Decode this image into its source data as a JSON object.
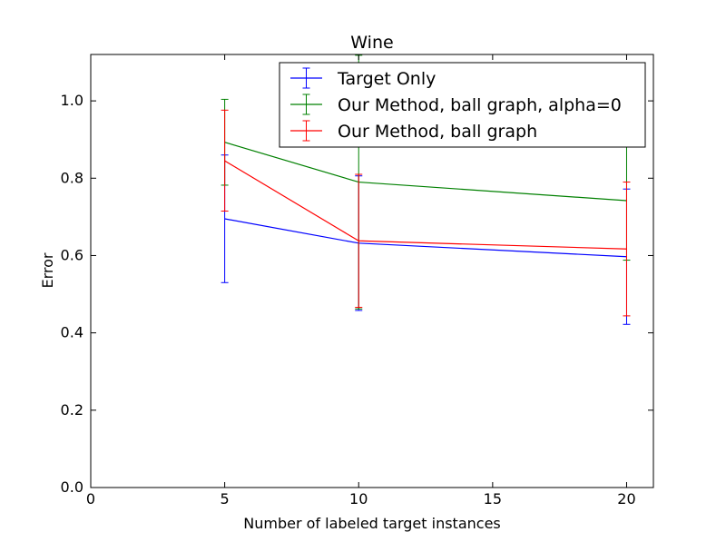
{
  "chart_data": {
    "type": "line",
    "title": "Wine",
    "xlabel": "Number of labeled target instances",
    "ylabel": "Error",
    "xlim": [
      0,
      21
    ],
    "ylim": [
      0.0,
      1.12
    ],
    "xticks": [
      0,
      5,
      10,
      15,
      20
    ],
    "yticks": [
      0.0,
      0.2,
      0.4,
      0.6,
      0.8,
      1.0
    ],
    "xtick_labels": [
      "0",
      "5",
      "10",
      "15",
      "20"
    ],
    "ytick_labels": [
      "0.0",
      "0.2",
      "0.4",
      "0.6",
      "0.8",
      "1.0"
    ],
    "grid": false,
    "legend_position": "top-right",
    "x": [
      5,
      10,
      20
    ],
    "series": [
      {
        "name": "Target Only",
        "color": "#0000ff",
        "values": [
          0.695,
          0.632,
          0.597
        ],
        "err_low": [
          0.53,
          0.458,
          0.422
        ],
        "err_high": [
          0.86,
          0.806,
          0.772
        ]
      },
      {
        "name": "Our Method, ball graph, alpha=0",
        "color": "#008000",
        "values": [
          0.893,
          0.79,
          0.742
        ],
        "err_low": [
          0.782,
          0.462,
          0.588
        ],
        "err_high": [
          1.004,
          1.118,
          0.896
        ]
      },
      {
        "name": "Our Method, ball graph",
        "color": "#ff0000",
        "values": [
          0.845,
          0.638,
          0.617
        ],
        "err_low": [
          0.715,
          0.466,
          0.444
        ],
        "err_high": [
          0.976,
          0.81,
          0.79
        ]
      }
    ]
  }
}
